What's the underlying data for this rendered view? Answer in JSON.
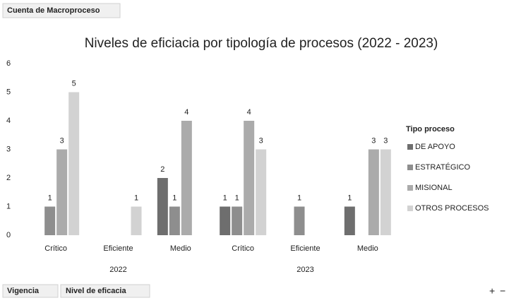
{
  "chart_data": {
    "type": "bar",
    "title": "Niveles de eficiacia por tipología de procesos (2022 - 2023)",
    "values_field": "Cuenta de Macroproceso",
    "axis_fields": [
      "Vigencia",
      "Nivel de eficacia"
    ],
    "legend_title": "Tipo proceso",
    "categories": [
      "Crítico",
      "Eficiente",
      "Medio",
      "Crítico",
      "Eficiente",
      "Medio"
    ],
    "category_groups": [
      "2022",
      "2023"
    ],
    "series": [
      {
        "name": "DE APOYO",
        "color": "#6e6e6e",
        "values": [
          null,
          null,
          2,
          1,
          null,
          1
        ]
      },
      {
        "name": "ESTRATÉGICO",
        "color": "#8e8e8e",
        "values": [
          1,
          null,
          1,
          1,
          1,
          null
        ]
      },
      {
        "name": "MISIONAL",
        "color": "#ababab",
        "values": [
          3,
          null,
          4,
          4,
          null,
          3
        ]
      },
      {
        "name": "OTROS PROCESOS",
        "color": "#d2d2d2",
        "values": [
          5,
          1,
          null,
          3,
          null,
          3
        ]
      }
    ],
    "ylim": [
      0,
      6
    ],
    "yticks": [
      0,
      1,
      2,
      3,
      4,
      5,
      6
    ],
    "grid": false,
    "zoom_buttons": [
      "+",
      "−"
    ]
  }
}
